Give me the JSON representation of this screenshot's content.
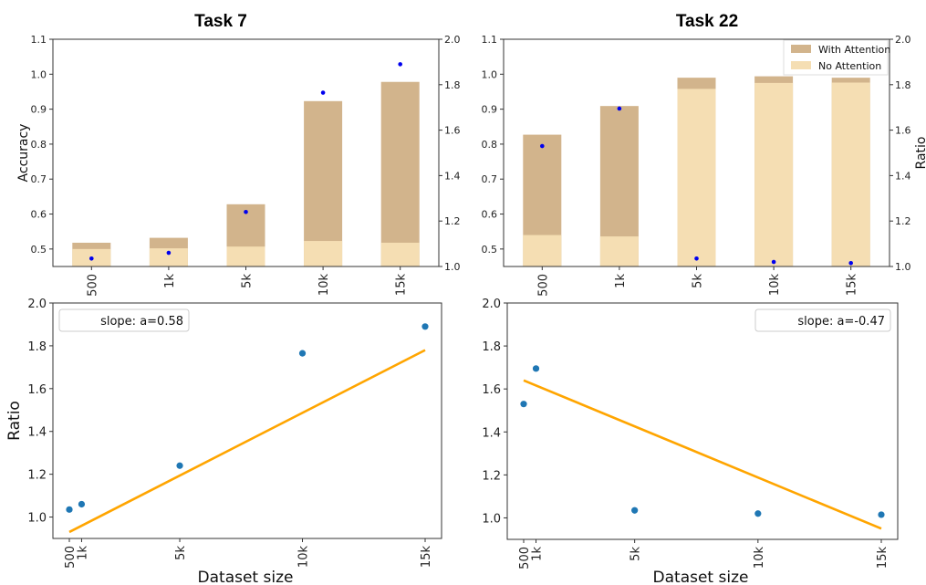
{
  "colors": {
    "with_attention": "#d2b48c",
    "no_attention": "#f5deb3",
    "ratio_dots_top": "#0000ee",
    "scatter_points": "#1f77b4",
    "fit_line": "#ffa500"
  },
  "chart_data": [
    {
      "id": "top-left",
      "type": "bar",
      "title": "Task 7",
      "categories": [
        "500",
        "1k",
        "5k",
        "10k",
        "15k"
      ],
      "ylabel": "Accuracy",
      "ylim": [
        0.45,
        1.1
      ],
      "yticks": [
        "0.5",
        "0.6",
        "0.7",
        "0.8",
        "0.9",
        "1.0",
        "1.1"
      ],
      "y2label": "",
      "y2lim": [
        1.0,
        2.0
      ],
      "y2ticks": [
        "1.0",
        "1.2",
        "1.4",
        "1.6",
        "1.8",
        "2.0"
      ],
      "series": [
        {
          "name": "With Attention",
          "values": [
            0.518,
            0.532,
            0.628,
            0.923,
            0.978
          ]
        },
        {
          "name": "No Attention",
          "values": [
            0.5,
            0.502,
            0.507,
            0.523,
            0.518
          ]
        }
      ],
      "ratio": [
        1.035,
        1.06,
        1.24,
        1.765,
        1.89
      ],
      "legend": false
    },
    {
      "id": "top-right",
      "type": "bar",
      "title": "Task 22",
      "categories": [
        "500",
        "1k",
        "5k",
        "10k",
        "15k"
      ],
      "ylabel": "",
      "ylim": [
        0.45,
        1.1
      ],
      "yticks": [
        "0.5",
        "0.6",
        "0.7",
        "0.8",
        "0.9",
        "1.0",
        "1.1"
      ],
      "y2label": "Ratio",
      "y2lim": [
        1.0,
        2.0
      ],
      "y2ticks": [
        "1.0",
        "1.2",
        "1.4",
        "1.6",
        "1.8",
        "2.0"
      ],
      "series": [
        {
          "name": "With Attention",
          "values": [
            0.827,
            0.909,
            0.99,
            0.994,
            0.99
          ]
        },
        {
          "name": "No Attention",
          "values": [
            0.54,
            0.536,
            0.958,
            0.975,
            0.976
          ]
        }
      ],
      "ratio": [
        1.53,
        1.695,
        1.035,
        1.02,
        1.015
      ],
      "legend": true,
      "legend_placement": "top-right"
    },
    {
      "id": "bottom-left",
      "type": "scatter",
      "x": [
        500,
        1000,
        5000,
        10000,
        15000
      ],
      "xticks": [
        "500",
        "1k",
        "5k",
        "10k",
        "15k"
      ],
      "y": [
        1.035,
        1.06,
        1.24,
        1.765,
        1.89
      ],
      "fit": {
        "y_start": 0.93,
        "y_end": 1.78
      },
      "annotation": "slope: a=0.58",
      "annotation_placement": "top-left",
      "xlabel": "Dataset size",
      "ylabel": "Ratio",
      "ylim": [
        0.9,
        2.0
      ],
      "yticks": [
        "1.0",
        "1.2",
        "1.4",
        "1.6",
        "1.8",
        "2.0"
      ]
    },
    {
      "id": "bottom-right",
      "type": "scatter",
      "x": [
        500,
        1000,
        5000,
        10000,
        15000
      ],
      "xticks": [
        "500",
        "1k",
        "5k",
        "10k",
        "15k"
      ],
      "y": [
        1.53,
        1.695,
        1.035,
        1.02,
        1.015
      ],
      "fit": {
        "y_start": 1.64,
        "y_end": 0.95
      },
      "annotation": "slope: a=-0.47",
      "annotation_placement": "top-right",
      "xlabel": "Dataset size",
      "ylabel": "",
      "ylim": [
        0.9,
        2.0
      ],
      "yticks": [
        "1.0",
        "1.2",
        "1.4",
        "1.6",
        "1.8",
        "2.0"
      ]
    }
  ]
}
